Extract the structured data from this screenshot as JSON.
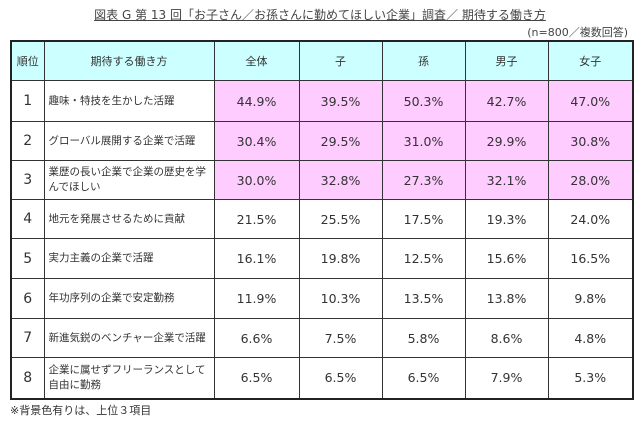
{
  "title": "図表 G 第 13 回「お子さん／お孫さんに勤めてほしい企業」調査／ 期待する働き方",
  "sample_note": "(n=800／複数回答)",
  "footnote": "※背景色有りは、上位３項目",
  "colors": {
    "header_bg": "#ccffff",
    "highlight_bg": "#ffccff"
  },
  "columns": [
    "順位",
    "期待する働き方",
    "全体",
    "子",
    "孫",
    "男子",
    "女子"
  ],
  "rows": [
    {
      "rank": "1",
      "item": "趣味・特技を生かした活躍",
      "values": [
        "44.9%",
        "39.5%",
        "50.3%",
        "42.7%",
        "47.0%"
      ],
      "highlight": true
    },
    {
      "rank": "2",
      "item": "グローバル展開する企業で活躍",
      "values": [
        "30.4%",
        "29.5%",
        "31.0%",
        "29.9%",
        "30.8%"
      ],
      "highlight": true
    },
    {
      "rank": "3",
      "item": "業歴の長い企業で企業の歴史を学んでほしい",
      "values": [
        "30.0%",
        "32.8%",
        "27.3%",
        "32.1%",
        "28.0%"
      ],
      "highlight": true
    },
    {
      "rank": "4",
      "item": "地元を発展させるために貢献",
      "values": [
        "21.5%",
        "25.5%",
        "17.5%",
        "19.3%",
        "24.0%"
      ],
      "highlight": false
    },
    {
      "rank": "5",
      "item": "実力主義の企業で活躍",
      "values": [
        "16.1%",
        "19.8%",
        "12.5%",
        "15.6%",
        "16.5%"
      ],
      "highlight": false
    },
    {
      "rank": "6",
      "item": "年功序列の企業で安定勤務",
      "values": [
        "11.9%",
        "10.3%",
        "13.5%",
        "13.8%",
        "9.8%"
      ],
      "highlight": false
    },
    {
      "rank": "7",
      "item": "新進気鋭のベンチャー企業で活躍",
      "values": [
        "6.6%",
        "7.5%",
        "5.8%",
        "8.6%",
        "4.8%"
      ],
      "highlight": false
    },
    {
      "rank": "8",
      "item": "企業に属せずフリーランスとして自由に勤務",
      "values": [
        "6.5%",
        "6.5%",
        "6.5%",
        "7.9%",
        "5.3%"
      ],
      "highlight": false
    }
  ],
  "chart_data": {
    "type": "table",
    "title": "図表 G 第 13 回「お子さん／お孫さんに勤めてほしい企業」調査／ 期待する働き方",
    "subtitle": "(n=800／複数回答)",
    "categories": [
      "趣味・特技を生かした活躍",
      "グローバル展開する企業で活躍",
      "業歴の長い企業で企業の歴史を学んでほしい",
      "地元を発展させるために貢献",
      "実力主義の企業で活躍",
      "年功序列の企業で安定勤務",
      "新進気鋭のベンチャー企業で活躍",
      "企業に属せずフリーランスとして自由に勤務"
    ],
    "series": [
      {
        "name": "全体",
        "values": [
          44.9,
          30.4,
          30.0,
          21.5,
          16.1,
          11.9,
          6.6,
          6.5
        ]
      },
      {
        "name": "子",
        "values": [
          39.5,
          29.5,
          32.8,
          25.5,
          19.8,
          10.3,
          7.5,
          6.5
        ]
      },
      {
        "name": "孫",
        "values": [
          50.3,
          31.0,
          27.3,
          17.5,
          12.5,
          13.5,
          5.8,
          6.5
        ]
      },
      {
        "name": "男子",
        "values": [
          42.7,
          29.9,
          32.1,
          19.3,
          15.6,
          13.8,
          8.6,
          7.9
        ]
      },
      {
        "name": "女子",
        "values": [
          47.0,
          30.8,
          28.0,
          24.0,
          16.5,
          9.8,
          4.8,
          5.3
        ]
      }
    ],
    "annotations": [
      "※背景色有りは、上位３項目"
    ]
  }
}
